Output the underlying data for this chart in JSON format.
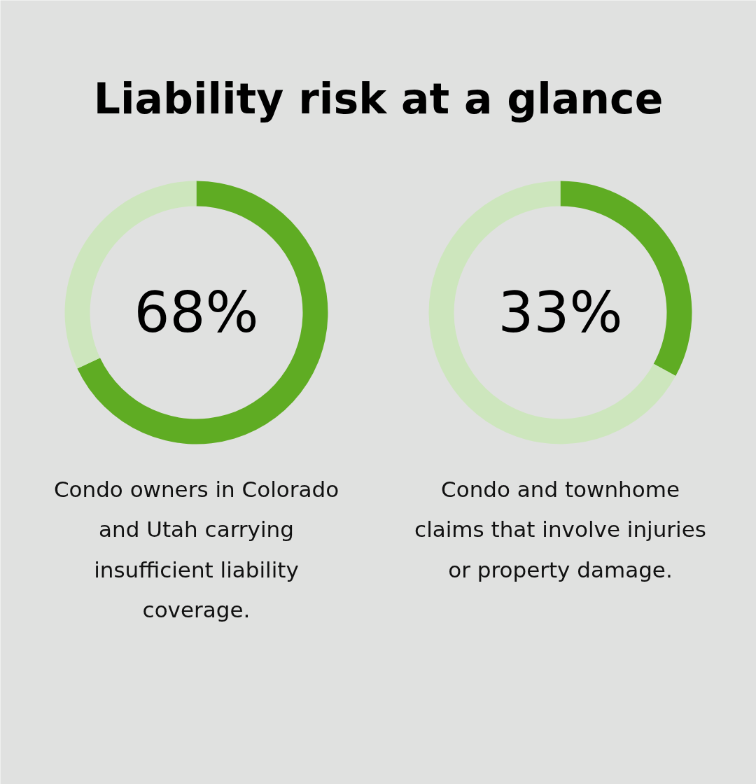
{
  "chart_data": [
    {
      "type": "donut",
      "title": "Liability risk at a glance",
      "categories": [
        null,
        null
      ],
      "values": [
        68,
        32
      ],
      "colors": [
        "#5fac23",
        "#cde6bd"
      ],
      "annotations": [
        "68%",
        "Condo owners in Colorado\nand Utah carrying\ninsufficient liability\ncoverage."
      ]
    },
    {
      "type": "donut",
      "categories": [
        null,
        null
      ],
      "values": [
        33,
        67
      ],
      "colors": [
        "#5fac23",
        "#cde6bd"
      ],
      "annotations": [
        "33%",
        "Condo and townhome\nclaims that involve injuries\nor property damage."
      ]
    }
  ]
}
